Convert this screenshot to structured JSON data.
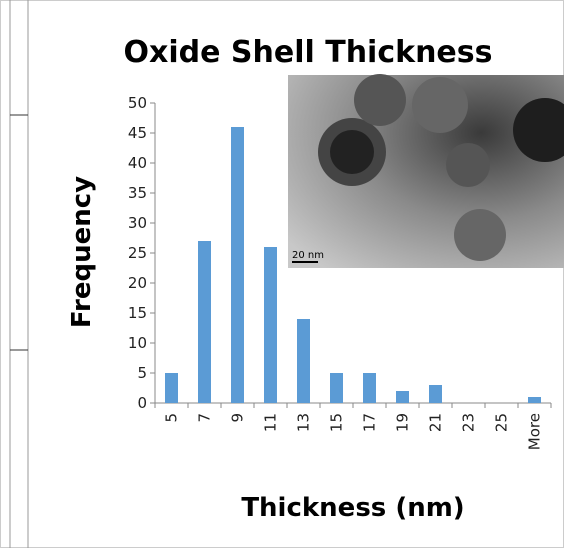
{
  "chart_data": {
    "type": "bar",
    "title": "Oxide Shell Thickness",
    "x_label": "Thickness (nm)",
    "y_label": "Frequency",
    "categories": [
      "5",
      "7",
      "9",
      "11",
      "13",
      "15",
      "17",
      "19",
      "21",
      "23",
      "25",
      "More"
    ],
    "values": [
      5,
      27,
      46,
      26,
      14,
      5,
      5,
      2,
      3,
      0,
      0,
      1
    ],
    "color": "#5b9bd5",
    "ylim": [
      0,
      50
    ],
    "yticks": [
      0,
      5,
      10,
      15,
      20,
      25,
      30,
      35,
      40,
      45,
      50
    ],
    "inset_scale_label": "20 nm"
  }
}
